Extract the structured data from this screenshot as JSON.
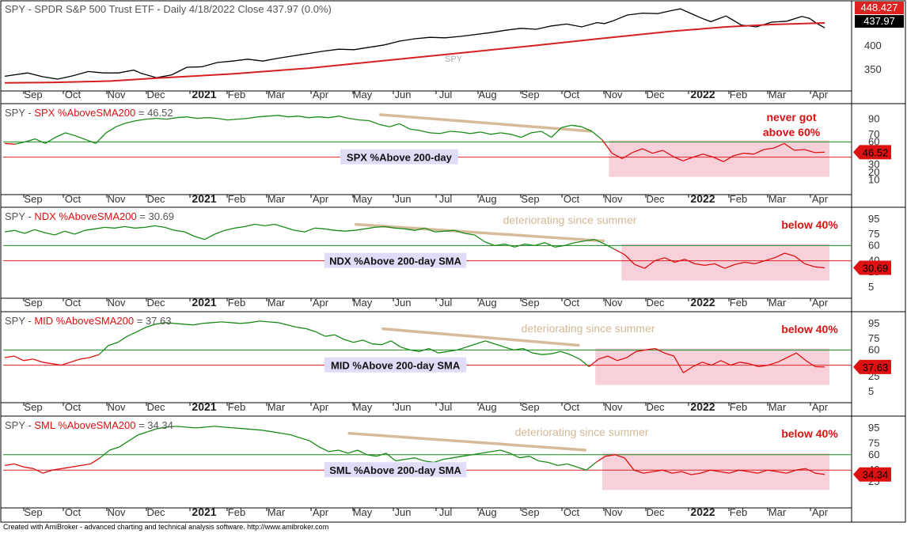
{
  "footer": "Created with AmiBroker - advanced charting and technical analysis software. http://www.amibroker.com",
  "colors": {
    "price": "#000000",
    "sma": "#d42020",
    "green": "#1a8a1a",
    "red": "#dd1111",
    "trend": "#d4b896",
    "pink": "#f7c8d4",
    "labelbg": "#dedcf7",
    "hline_green": "#1a8a1a",
    "hline_red": "#dd2222"
  },
  "chart_data": [
    {
      "type": "line",
      "title": "SPY - SPDR S&P 500 Trust ETF - Daily 4/18/2022 Close 437.97 (0.0%)",
      "watermark": "SPY",
      "x_labels": [
        "Sep",
        "Oct",
        "Nov",
        "Dec",
        "2021",
        "Feb",
        "Mar",
        "Apr",
        "May",
        "Jun",
        "Jul",
        "Aug",
        "Sep",
        "Oct",
        "Nov",
        "Dec",
        "2022",
        "Feb",
        "Mar",
        "Apr"
      ],
      "y_ticks": [
        "400",
        "350"
      ],
      "ylim": [
        320,
        480
      ],
      "series": [
        {
          "name": "price",
          "points": [
            [
              0,
              336
            ],
            [
              3,
              343
            ],
            [
              5,
              335
            ],
            [
              7,
              330
            ],
            [
              9,
              337
            ],
            [
              11,
              346
            ],
            [
              13,
              343
            ],
            [
              15,
              343
            ],
            [
              17,
              349
            ],
            [
              18,
              342
            ],
            [
              20,
              333
            ],
            [
              22,
              339
            ],
            [
              24,
              355
            ],
            [
              26,
              356
            ],
            [
              28,
              365
            ],
            [
              30,
              368
            ],
            [
              32,
              372
            ],
            [
              34,
              368
            ],
            [
              36,
              374
            ],
            [
              38,
              379
            ],
            [
              40,
              384
            ],
            [
              42,
              389
            ],
            [
              44,
              393
            ],
            [
              46,
              392
            ],
            [
              48,
              397
            ],
            [
              50,
              402
            ],
            [
              52,
              410
            ],
            [
              54,
              415
            ],
            [
              56,
              418
            ],
            [
              58,
              417
            ],
            [
              60,
              420
            ],
            [
              62,
              424
            ],
            [
              64,
              428
            ],
            [
              66,
              433
            ],
            [
              68,
              437
            ],
            [
              70,
              435
            ],
            [
              72,
              442
            ],
            [
              74,
              446
            ],
            [
              76,
              440
            ],
            [
              78,
              449
            ],
            [
              79,
              447
            ],
            [
              80,
              452
            ],
            [
              82,
              465
            ],
            [
              84,
              469
            ],
            [
              86,
              468
            ],
            [
              88,
              475
            ],
            [
              89,
              478
            ],
            [
              91,
              464
            ],
            [
              92,
              457
            ],
            [
              93,
              451
            ],
            [
              95,
              463
            ],
            [
              97,
              444
            ],
            [
              99,
              440
            ],
            [
              101,
              450
            ],
            [
              103,
              452
            ],
            [
              105,
              462
            ],
            [
              106,
              458
            ],
            [
              107,
              447
            ],
            [
              108,
              438
            ]
          ],
          "color": "#000000"
        },
        {
          "name": "sma",
          "points": [
            [
              0,
              322
            ],
            [
              6,
              323
            ],
            [
              14,
              326
            ],
            [
              20,
              332
            ],
            [
              30,
              341
            ],
            [
              40,
              353
            ],
            [
              50,
              369
            ],
            [
              60,
              385
            ],
            [
              70,
              401
            ],
            [
              80,
              418
            ],
            [
              88,
              431
            ],
            [
              95,
              440
            ],
            [
              101,
              445
            ],
            [
              108,
              448.4
            ]
          ],
          "color": "#d42020"
        }
      ],
      "value_tags": [
        {
          "text": "448.427",
          "bg": "#dd2222",
          "fg": "#ffffff"
        },
        {
          "text": "437.97",
          "bg": "#000000",
          "fg": "#ffffff"
        }
      ]
    },
    {
      "type": "line",
      "title_prefix": "SPY - ",
      "title_name": "SPX %AboveSMA200",
      "title_value": " = 46.52",
      "x_labels": [
        "Sep",
        "Oct",
        "Nov",
        "Dec",
        "2021",
        "Feb",
        "Mar",
        "Apr",
        "May",
        "Jun",
        "Jul",
        "Aug",
        "Sep",
        "Oct",
        "Nov",
        "Dec",
        "2022",
        "Feb",
        "Mar",
        "Apr"
      ],
      "y_ticks": [
        "90",
        "70",
        "60",
        "50",
        "30",
        "20",
        "10"
      ],
      "ylim": [
        0,
        100
      ],
      "green_line": 60,
      "red_line": 40,
      "series_values": [
        58,
        57,
        60,
        64,
        58,
        66,
        72,
        68,
        63,
        58,
        72,
        80,
        85,
        88,
        90,
        91,
        90,
        92,
        93,
        91,
        92,
        91,
        89,
        90,
        91,
        93,
        94,
        95,
        93,
        94,
        92,
        93,
        92,
        94,
        91,
        89,
        88,
        83,
        80,
        84,
        77,
        75,
        72,
        71,
        74,
        73,
        71,
        73,
        70,
        72,
        70,
        66,
        72,
        74,
        66,
        79,
        82,
        80,
        74,
        63,
        45,
        38,
        46,
        51,
        45,
        49,
        41,
        35,
        40,
        44,
        40,
        34,
        42,
        45,
        44,
        50,
        52,
        58,
        49,
        50,
        46,
        46.5
      ],
      "split_index": 59,
      "current": 46.52,
      "box_label": "SPX %Above 200-day",
      "annotation": "never got\nabove 60%",
      "value_tag": "46.52"
    },
    {
      "type": "line",
      "title_prefix": "SPY - ",
      "title_name": "NDX %AboveSMA200",
      "title_value": " = 30.69",
      "x_labels": [
        "Sep",
        "Oct",
        "Nov",
        "Dec",
        "2021",
        "Feb",
        "Mar",
        "Apr",
        "May",
        "Jun",
        "Jul",
        "Aug",
        "Sep",
        "Oct",
        "Nov",
        "Dec",
        "2022",
        "Feb",
        "Mar",
        "Apr"
      ],
      "y_ticks": [
        "95",
        "75",
        "60",
        "40",
        "25",
        "5"
      ],
      "ylim": [
        0,
        100
      ],
      "green_line": 60,
      "red_line": 40,
      "series_values": [
        78,
        80,
        76,
        81,
        77,
        74,
        79,
        75,
        80,
        82,
        84,
        83,
        85,
        83,
        84,
        86,
        84,
        80,
        78,
        72,
        68,
        75,
        80,
        83,
        85,
        88,
        86,
        88,
        84,
        80,
        78,
        83,
        82,
        80,
        79,
        80,
        82,
        84,
        85,
        83,
        82,
        80,
        83,
        78,
        79,
        80,
        76,
        74,
        65,
        60,
        62,
        58,
        62,
        60,
        64,
        58,
        60,
        64,
        66,
        68,
        62,
        55,
        48,
        35,
        30,
        40,
        44,
        38,
        42,
        36,
        34,
        36,
        30,
        35,
        38,
        36,
        40,
        44,
        50,
        46,
        36,
        32,
        30.7
      ],
      "split_index": 61,
      "current": 30.69,
      "box_label": "NDX %Above 200-day SMA",
      "annotation": "below 40%",
      "trend_label": "deteriorating since summer",
      "value_tag": "30.69"
    },
    {
      "type": "line",
      "title_prefix": "SPY - ",
      "title_name": "MID %AboveSMA200",
      "title_value": " = 37.63",
      "x_labels": [
        "Sep",
        "Oct",
        "Nov",
        "Dec",
        "2021",
        "Feb",
        "Mar",
        "Apr",
        "May",
        "Jun",
        "Jul",
        "Aug",
        "Sep",
        "Oct",
        "Nov",
        "Dec",
        "2022",
        "Feb",
        "Mar",
        "Apr"
      ],
      "y_ticks": [
        "95",
        "75",
        "60",
        "40",
        "25",
        "5"
      ],
      "ylim": [
        0,
        100
      ],
      "green_line": 60,
      "red_line": 40,
      "series_values": [
        50,
        52,
        46,
        48,
        44,
        42,
        40,
        44,
        48,
        50,
        54,
        66,
        70,
        78,
        84,
        90,
        94,
        96,
        95,
        94,
        93,
        95,
        96,
        97,
        96,
        95,
        96,
        98,
        97,
        96,
        93,
        90,
        88,
        84,
        78,
        80,
        74,
        70,
        73,
        68,
        67,
        72,
        64,
        60,
        58,
        62,
        56,
        58,
        60,
        64,
        68,
        72,
        68,
        64,
        60,
        62,
        56,
        54,
        55,
        58,
        54,
        48,
        38,
        48,
        52,
        46,
        50,
        58,
        60,
        62,
        56,
        52,
        30,
        38,
        44,
        40,
        46,
        40,
        44,
        42,
        38,
        40,
        44,
        50,
        56,
        46,
        38,
        37.6
      ],
      "split_index": 62,
      "current": 37.63,
      "box_label": "MID %Above 200-day SMA",
      "annotation": "below 40%",
      "trend_label": "deteriorating since summer",
      "value_tag": "37.63"
    },
    {
      "type": "line",
      "title_prefix": "SPY - ",
      "title_name": "SML %AboveSMA200",
      "title_value": " = 34.34",
      "x_labels": [
        "Sep",
        "Oct",
        "Nov",
        "Dec",
        "2021",
        "Feb",
        "Mar",
        "Apr",
        "May",
        "Jun",
        "Jul",
        "Aug",
        "Sep",
        "Oct",
        "Nov",
        "Dec",
        "2022",
        "Feb",
        "Mar",
        "Apr"
      ],
      "y_ticks": [
        "95",
        "75",
        "60",
        "40",
        "25"
      ],
      "ylim": [
        0,
        100
      ],
      "green_line": 60,
      "red_line": 40,
      "series_values": [
        46,
        48,
        44,
        42,
        36,
        40,
        42,
        44,
        46,
        48,
        56,
        66,
        70,
        78,
        86,
        90,
        94,
        96,
        97,
        96,
        95,
        96,
        97,
        96,
        95,
        94,
        93,
        92,
        90,
        88,
        86,
        82,
        78,
        70,
        64,
        66,
        62,
        66,
        60,
        58,
        62,
        52,
        54,
        56,
        52,
        50,
        54,
        56,
        58,
        60,
        62,
        64,
        66,
        62,
        56,
        58,
        52,
        50,
        46,
        48,
        44,
        40,
        50,
        58,
        60,
        56,
        40,
        36,
        38,
        40,
        36,
        38,
        34,
        36,
        40,
        38,
        36,
        40,
        38,
        36,
        40,
        38,
        36,
        40,
        42,
        36,
        34.3
      ],
      "split_index": 62,
      "current": 34.34,
      "box_label": "SML %Above 200-day SMA",
      "annotation": "below 40%",
      "trend_label": "deteriorating since summer",
      "value_tag": "34.34"
    }
  ]
}
